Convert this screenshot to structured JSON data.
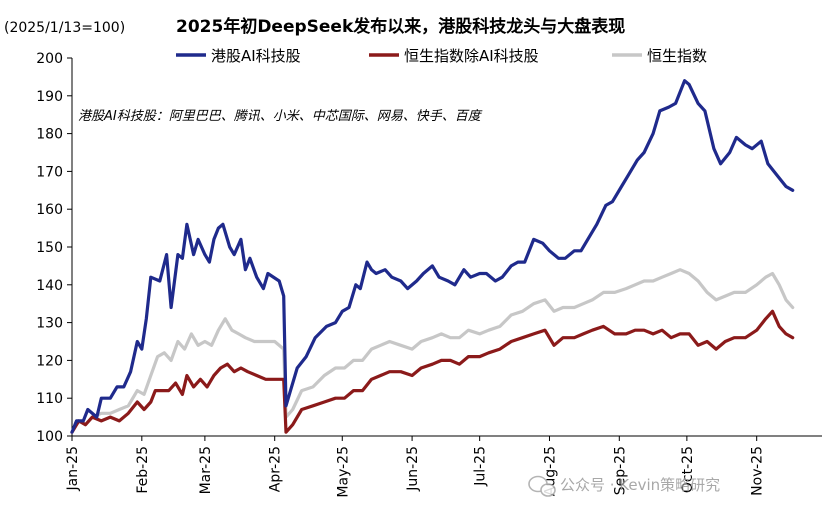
{
  "chart_data": {
    "type": "line",
    "title": "2025年初DeepSeek发布以来，港股科技龙头与大盘表现",
    "ylabel": "(2025/1/13=100)",
    "xlabel": "",
    "ylim": [
      100,
      200
    ],
    "yticks": [
      100,
      110,
      120,
      130,
      140,
      150,
      160,
      170,
      180,
      190,
      200
    ],
    "xlim": [
      "2025-01-01",
      "2025-11-30"
    ],
    "xticks": [
      {
        "label": "Jan-25",
        "date": "2025-01-01"
      },
      {
        "label": "Feb-25",
        "date": "2025-02-01"
      },
      {
        "label": "Mar-25",
        "date": "2025-03-01"
      },
      {
        "label": "Apr-25",
        "date": "2025-04-01"
      },
      {
        "label": "May-25",
        "date": "2025-05-01"
      },
      {
        "label": "Jun-25",
        "date": "2025-06-01"
      },
      {
        "label": "Jul-25",
        "date": "2025-07-01"
      },
      {
        "label": "Aug-25",
        "date": "2025-08-01"
      },
      {
        "label": "Sep-25",
        "date": "2025-09-01"
      },
      {
        "label": "Oct-25",
        "date": "2025-10-01"
      },
      {
        "label": "Nov-25",
        "date": "2025-11-01"
      }
    ],
    "grid": false,
    "legend_position": "top",
    "annotation": "港股AI科技股：阿里巴巴、腾讯、小米、中芯国际、网易、快手、百度",
    "series": [
      {
        "name": "港股AI科技股",
        "color": "#1f2a8c",
        "points": [
          [
            "2025-01-01",
            101
          ],
          [
            "2025-01-03",
            104
          ],
          [
            "2025-01-06",
            104
          ],
          [
            "2025-01-08",
            107
          ],
          [
            "2025-01-12",
            105
          ],
          [
            "2025-01-14",
            110
          ],
          [
            "2025-01-18",
            110
          ],
          [
            "2025-01-21",
            113
          ],
          [
            "2025-01-24",
            113
          ],
          [
            "2025-01-27",
            117
          ],
          [
            "2025-01-30",
            125
          ],
          [
            "2025-02-01",
            123
          ],
          [
            "2025-02-03",
            131
          ],
          [
            "2025-02-05",
            142
          ],
          [
            "2025-02-09",
            141
          ],
          [
            "2025-02-12",
            148
          ],
          [
            "2025-02-14",
            134
          ],
          [
            "2025-02-17",
            148
          ],
          [
            "2025-02-19",
            147
          ],
          [
            "2025-02-21",
            156
          ],
          [
            "2025-02-24",
            148
          ],
          [
            "2025-02-26",
            152
          ],
          [
            "2025-03-01",
            148
          ],
          [
            "2025-03-03",
            146
          ],
          [
            "2025-03-05",
            152
          ],
          [
            "2025-03-07",
            155
          ],
          [
            "2025-03-09",
            156
          ],
          [
            "2025-03-12",
            150
          ],
          [
            "2025-03-14",
            148
          ],
          [
            "2025-03-17",
            152
          ],
          [
            "2025-03-19",
            144
          ],
          [
            "2025-03-21",
            147
          ],
          [
            "2025-03-24",
            142
          ],
          [
            "2025-03-27",
            139
          ],
          [
            "2025-03-29",
            143
          ],
          [
            "2025-04-03",
            141
          ],
          [
            "2025-04-05",
            137
          ],
          [
            "2025-04-06",
            108
          ],
          [
            "2025-04-08",
            112
          ],
          [
            "2025-04-11",
            118
          ],
          [
            "2025-04-15",
            121
          ],
          [
            "2025-04-19",
            126
          ],
          [
            "2025-04-24",
            129
          ],
          [
            "2025-04-28",
            130
          ],
          [
            "2025-05-01",
            133
          ],
          [
            "2025-05-04",
            134
          ],
          [
            "2025-05-07",
            140
          ],
          [
            "2025-05-09",
            139
          ],
          [
            "2025-05-12",
            146
          ],
          [
            "2025-05-14",
            144
          ],
          [
            "2025-05-16",
            143
          ],
          [
            "2025-05-20",
            144
          ],
          [
            "2025-05-23",
            142
          ],
          [
            "2025-05-27",
            141
          ],
          [
            "2025-05-30",
            139
          ],
          [
            "2025-06-03",
            141
          ],
          [
            "2025-06-06",
            143
          ],
          [
            "2025-06-10",
            145
          ],
          [
            "2025-06-13",
            142
          ],
          [
            "2025-06-17",
            141
          ],
          [
            "2025-06-20",
            140
          ],
          [
            "2025-06-24",
            144
          ],
          [
            "2025-06-27",
            142
          ],
          [
            "2025-07-01",
            143
          ],
          [
            "2025-07-04",
            143
          ],
          [
            "2025-07-08",
            141
          ],
          [
            "2025-07-11",
            142
          ],
          [
            "2025-07-15",
            145
          ],
          [
            "2025-07-18",
            146
          ],
          [
            "2025-07-21",
            146
          ],
          [
            "2025-07-25",
            152
          ],
          [
            "2025-07-29",
            151
          ],
          [
            "2025-08-01",
            149
          ],
          [
            "2025-08-05",
            147
          ],
          [
            "2025-08-08",
            147
          ],
          [
            "2025-08-12",
            149
          ],
          [
            "2025-08-15",
            149
          ],
          [
            "2025-08-19",
            153
          ],
          [
            "2025-08-22",
            156
          ],
          [
            "2025-08-26",
            161
          ],
          [
            "2025-08-29",
            162
          ],
          [
            "2025-09-02",
            166
          ],
          [
            "2025-09-05",
            169
          ],
          [
            "2025-09-09",
            173
          ],
          [
            "2025-09-12",
            175
          ],
          [
            "2025-09-16",
            180
          ],
          [
            "2025-09-19",
            186
          ],
          [
            "2025-09-23",
            187
          ],
          [
            "2025-09-26",
            188
          ],
          [
            "2025-09-30",
            194
          ],
          [
            "2025-10-02",
            193
          ],
          [
            "2025-10-06",
            188
          ],
          [
            "2025-10-09",
            186
          ],
          [
            "2025-10-13",
            176
          ],
          [
            "2025-10-16",
            172
          ],
          [
            "2025-10-20",
            175
          ],
          [
            "2025-10-23",
            179
          ],
          [
            "2025-10-27",
            177
          ],
          [
            "2025-10-30",
            176
          ],
          [
            "2025-11-03",
            178
          ],
          [
            "2025-11-06",
            172
          ],
          [
            "2025-11-10",
            169
          ],
          [
            "2025-11-14",
            166
          ],
          [
            "2025-11-17",
            165
          ]
        ]
      },
      {
        "name": "恒生指数除AI科技股",
        "color": "#8b1a1a",
        "points": [
          [
            "2025-01-01",
            101
          ],
          [
            "2025-01-04",
            104
          ],
          [
            "2025-01-07",
            103
          ],
          [
            "2025-01-10",
            105
          ],
          [
            "2025-01-14",
            104
          ],
          [
            "2025-01-18",
            105
          ],
          [
            "2025-01-22",
            104
          ],
          [
            "2025-01-26",
            106
          ],
          [
            "2025-01-30",
            109
          ],
          [
            "2025-02-02",
            107
          ],
          [
            "2025-02-05",
            109
          ],
          [
            "2025-02-07",
            112
          ],
          [
            "2025-02-10",
            112
          ],
          [
            "2025-02-13",
            112
          ],
          [
            "2025-02-16",
            114
          ],
          [
            "2025-02-19",
            111
          ],
          [
            "2025-02-21",
            116
          ],
          [
            "2025-02-24",
            113
          ],
          [
            "2025-02-27",
            115
          ],
          [
            "2025-03-02",
            113
          ],
          [
            "2025-03-05",
            116
          ],
          [
            "2025-03-08",
            118
          ],
          [
            "2025-03-11",
            119
          ],
          [
            "2025-03-14",
            117
          ],
          [
            "2025-03-17",
            118
          ],
          [
            "2025-03-20",
            117
          ],
          [
            "2025-03-24",
            116
          ],
          [
            "2025-03-28",
            115
          ],
          [
            "2025-04-02",
            115
          ],
          [
            "2025-04-05",
            115
          ],
          [
            "2025-04-06",
            101
          ],
          [
            "2025-04-09",
            103
          ],
          [
            "2025-04-13",
            107
          ],
          [
            "2025-04-18",
            108
          ],
          [
            "2025-04-23",
            109
          ],
          [
            "2025-04-28",
            110
          ],
          [
            "2025-05-02",
            110
          ],
          [
            "2025-05-06",
            112
          ],
          [
            "2025-05-10",
            112
          ],
          [
            "2025-05-14",
            115
          ],
          [
            "2025-05-18",
            116
          ],
          [
            "2025-05-22",
            117
          ],
          [
            "2025-05-27",
            117
          ],
          [
            "2025-06-01",
            116
          ],
          [
            "2025-06-05",
            118
          ],
          [
            "2025-06-10",
            119
          ],
          [
            "2025-06-14",
            120
          ],
          [
            "2025-06-18",
            120
          ],
          [
            "2025-06-22",
            119
          ],
          [
            "2025-06-26",
            121
          ],
          [
            "2025-07-01",
            121
          ],
          [
            "2025-07-05",
            122
          ],
          [
            "2025-07-10",
            123
          ],
          [
            "2025-07-15",
            125
          ],
          [
            "2025-07-20",
            126
          ],
          [
            "2025-07-25",
            127
          ],
          [
            "2025-07-30",
            128
          ],
          [
            "2025-08-03",
            124
          ],
          [
            "2025-08-07",
            126
          ],
          [
            "2025-08-12",
            126
          ],
          [
            "2025-08-16",
            127
          ],
          [
            "2025-08-20",
            128
          ],
          [
            "2025-08-25",
            129
          ],
          [
            "2025-08-30",
            127
          ],
          [
            "2025-09-04",
            127
          ],
          [
            "2025-09-08",
            128
          ],
          [
            "2025-09-12",
            128
          ],
          [
            "2025-09-16",
            127
          ],
          [
            "2025-09-20",
            128
          ],
          [
            "2025-09-24",
            126
          ],
          [
            "2025-09-28",
            127
          ],
          [
            "2025-10-02",
            127
          ],
          [
            "2025-10-06",
            124
          ],
          [
            "2025-10-10",
            125
          ],
          [
            "2025-10-14",
            123
          ],
          [
            "2025-10-18",
            125
          ],
          [
            "2025-10-22",
            126
          ],
          [
            "2025-10-27",
            126
          ],
          [
            "2025-11-01",
            128
          ],
          [
            "2025-11-05",
            131
          ],
          [
            "2025-11-08",
            133
          ],
          [
            "2025-11-11",
            129
          ],
          [
            "2025-11-14",
            127
          ],
          [
            "2025-11-17",
            126
          ]
        ]
      },
      {
        "name": "恒生指数",
        "color": "#c7c7c7",
        "points": [
          [
            "2025-01-01",
            101
          ],
          [
            "2025-01-04",
            104
          ],
          [
            "2025-01-07",
            103
          ],
          [
            "2025-01-10",
            105
          ],
          [
            "2025-01-14",
            106
          ],
          [
            "2025-01-18",
            106
          ],
          [
            "2025-01-22",
            107
          ],
          [
            "2025-01-26",
            108
          ],
          [
            "2025-01-30",
            112
          ],
          [
            "2025-02-02",
            111
          ],
          [
            "2025-02-05",
            116
          ],
          [
            "2025-02-08",
            121
          ],
          [
            "2025-02-11",
            122
          ],
          [
            "2025-02-14",
            120
          ],
          [
            "2025-02-17",
            125
          ],
          [
            "2025-02-20",
            123
          ],
          [
            "2025-02-23",
            127
          ],
          [
            "2025-02-26",
            124
          ],
          [
            "2025-03-01",
            125
          ],
          [
            "2025-03-04",
            124
          ],
          [
            "2025-03-07",
            128
          ],
          [
            "2025-03-10",
            131
          ],
          [
            "2025-03-13",
            128
          ],
          [
            "2025-03-16",
            127
          ],
          [
            "2025-03-19",
            126
          ],
          [
            "2025-03-23",
            125
          ],
          [
            "2025-03-27",
            125
          ],
          [
            "2025-04-01",
            125
          ],
          [
            "2025-04-05",
            123
          ],
          [
            "2025-04-06",
            105
          ],
          [
            "2025-04-09",
            107
          ],
          [
            "2025-04-13",
            112
          ],
          [
            "2025-04-18",
            113
          ],
          [
            "2025-04-23",
            116
          ],
          [
            "2025-04-28",
            118
          ],
          [
            "2025-05-02",
            118
          ],
          [
            "2025-05-06",
            120
          ],
          [
            "2025-05-10",
            120
          ],
          [
            "2025-05-14",
            123
          ],
          [
            "2025-05-18",
            124
          ],
          [
            "2025-05-22",
            125
          ],
          [
            "2025-05-27",
            124
          ],
          [
            "2025-06-01",
            123
          ],
          [
            "2025-06-05",
            125
          ],
          [
            "2025-06-10",
            126
          ],
          [
            "2025-06-14",
            127
          ],
          [
            "2025-06-18",
            126
          ],
          [
            "2025-06-22",
            126
          ],
          [
            "2025-06-26",
            128
          ],
          [
            "2025-07-01",
            127
          ],
          [
            "2025-07-05",
            128
          ],
          [
            "2025-07-10",
            129
          ],
          [
            "2025-07-15",
            132
          ],
          [
            "2025-07-20",
            133
          ],
          [
            "2025-07-25",
            135
          ],
          [
            "2025-07-30",
            136
          ],
          [
            "2025-08-03",
            133
          ],
          [
            "2025-08-07",
            134
          ],
          [
            "2025-08-12",
            134
          ],
          [
            "2025-08-16",
            135
          ],
          [
            "2025-08-20",
            136
          ],
          [
            "2025-08-25",
            138
          ],
          [
            "2025-08-30",
            138
          ],
          [
            "2025-09-04",
            139
          ],
          [
            "2025-09-08",
            140
          ],
          [
            "2025-09-12",
            141
          ],
          [
            "2025-09-16",
            141
          ],
          [
            "2025-09-20",
            142
          ],
          [
            "2025-09-24",
            143
          ],
          [
            "2025-09-28",
            144
          ],
          [
            "2025-10-02",
            143
          ],
          [
            "2025-10-06",
            141
          ],
          [
            "2025-10-10",
            138
          ],
          [
            "2025-10-14",
            136
          ],
          [
            "2025-10-18",
            137
          ],
          [
            "2025-10-22",
            138
          ],
          [
            "2025-10-27",
            138
          ],
          [
            "2025-11-01",
            140
          ],
          [
            "2025-11-05",
            142
          ],
          [
            "2025-11-08",
            143
          ],
          [
            "2025-11-11",
            140
          ],
          [
            "2025-11-14",
            136
          ],
          [
            "2025-11-17",
            134
          ]
        ]
      }
    ]
  },
  "watermark": "公众号 · Kevin策略研究",
  "watermark_icon": "wechat-icon"
}
